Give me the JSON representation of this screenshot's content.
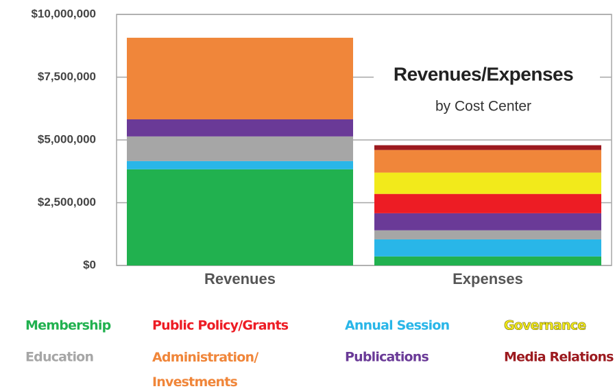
{
  "chart_data": {
    "type": "stacked_bar",
    "title": "Revenues/Expenses",
    "subtitle": "by Cost Center",
    "categories": [
      "Revenues",
      "Expenses"
    ],
    "series": [
      {
        "name": "Membership",
        "color": "#21b14f",
        "values": [
          3830000,
          360000
        ]
      },
      {
        "name": "Public Policy/Grants",
        "color": "#ed1c24",
        "values": [
          0,
          770000
        ]
      },
      {
        "name": "Annual Session",
        "color": "#29b6e8",
        "values": [
          330000,
          680000
        ]
      },
      {
        "name": "Governance",
        "color": "#f2ea1b",
        "values": [
          0,
          850000
        ]
      },
      {
        "name": "Education",
        "color": "#a6a6a6",
        "values": [
          980000,
          360000
        ]
      },
      {
        "name": "Administration/ Investments",
        "color": "#f0863a",
        "values": [
          3250000,
          900000
        ]
      },
      {
        "name": "Publications",
        "color": "#6a3a97",
        "values": [
          680000,
          680000
        ]
      },
      {
        "name": "Media Relations",
        "color": "#9c1a1f",
        "values": [
          0,
          190000
        ]
      }
    ],
    "ylim": [
      0,
      10000000
    ],
    "yticks": [
      {
        "value": 0,
        "label": "$0"
      },
      {
        "value": 2500000,
        "label": "$2,500,000"
      },
      {
        "value": 5000000,
        "label": "$5,000,000"
      },
      {
        "value": 7500000,
        "label": "$7,500,000"
      },
      {
        "value": 10000000,
        "label": "$10,000,000"
      }
    ],
    "grid": true
  }
}
